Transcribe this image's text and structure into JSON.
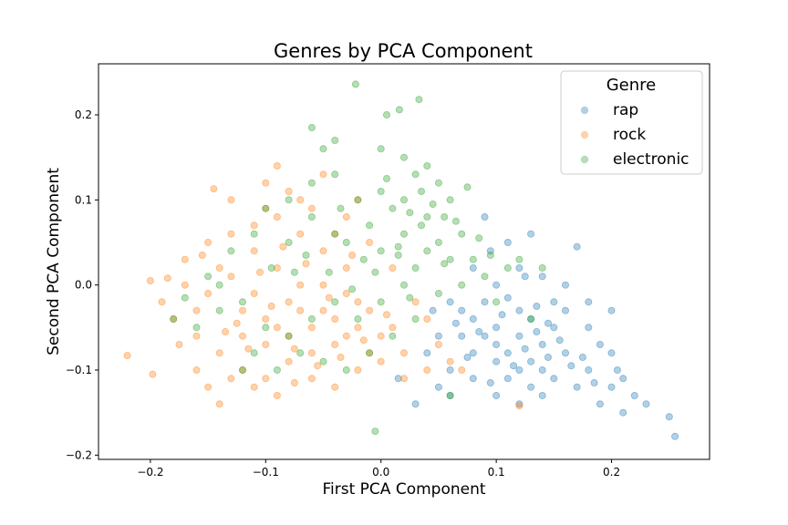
{
  "chart_data": {
    "type": "scatter",
    "title": "Genres by PCA Component",
    "xlabel": "First PCA Component",
    "ylabel": "Second PCA Component",
    "xlim": [
      -0.245,
      0.285
    ],
    "ylim": [
      -0.205,
      0.26
    ],
    "x_ticks": [
      -0.2,
      -0.1,
      0.0,
      0.1,
      0.2
    ],
    "x_tick_labels": [
      "−0.2",
      "−0.1",
      "0.0",
      "0.1",
      "0.2"
    ],
    "y_ticks": [
      -0.2,
      -0.1,
      0.0,
      0.1,
      0.2
    ],
    "y_tick_labels": [
      "−0.2",
      "−0.1",
      "0.0",
      "0.1",
      "0.2"
    ],
    "grid": false,
    "legend": {
      "title": "Genre",
      "placement": "top-right"
    },
    "series": [
      {
        "name": "rap",
        "color": "#1f77b4",
        "points": [
          [
            0.06,
            -0.02
          ],
          [
            0.08,
            -0.04
          ],
          [
            0.1,
            -0.05
          ],
          [
            0.12,
            -0.06
          ],
          [
            0.14,
            -0.07
          ],
          [
            0.11,
            -0.08
          ],
          [
            0.09,
            -0.06
          ],
          [
            0.13,
            -0.04
          ],
          [
            0.15,
            -0.05
          ],
          [
            0.1,
            -0.09
          ],
          [
            0.12,
            -0.1
          ],
          [
            0.07,
            -0.03
          ],
          [
            0.16,
            -0.08
          ],
          [
            0.18,
            -0.1
          ],
          [
            0.2,
            -0.12
          ],
          [
            0.22,
            -0.13
          ],
          [
            0.21,
            -0.15
          ],
          [
            0.25,
            -0.155
          ],
          [
            0.255,
            -0.178
          ],
          [
            0.19,
            -0.14
          ],
          [
            0.17,
            -0.12
          ],
          [
            0.14,
            -0.1
          ],
          [
            0.13,
            -0.12
          ],
          [
            0.11,
            -0.11
          ],
          [
            0.08,
            -0.08
          ],
          [
            0.05,
            -0.06
          ],
          [
            0.04,
            -0.08
          ],
          [
            0.06,
            -0.1
          ],
          [
            0.05,
            -0.12
          ],
          [
            0.03,
            -0.14
          ],
          [
            0.015,
            -0.11
          ],
          [
            0.1,
            0.0
          ],
          [
            0.12,
            0.02
          ],
          [
            0.14,
            0.01
          ],
          [
            0.16,
            0.0
          ],
          [
            0.13,
            0.06
          ],
          [
            0.17,
            0.045
          ],
          [
            0.09,
            0.08
          ],
          [
            0.11,
            0.05
          ],
          [
            0.15,
            -0.02
          ],
          [
            0.18,
            -0.05
          ],
          [
            0.19,
            -0.07
          ],
          [
            0.2,
            -0.08
          ],
          [
            0.21,
            -0.11
          ],
          [
            0.23,
            -0.14
          ],
          [
            0.08,
            -0.11
          ],
          [
            0.06,
            -0.13
          ],
          [
            0.1,
            -0.13
          ],
          [
            0.12,
            -0.14
          ],
          [
            0.14,
            -0.13
          ],
          [
            0.09,
            -0.02
          ],
          [
            0.07,
            -0.06
          ],
          [
            0.13,
            -0.09
          ],
          [
            0.15,
            -0.11
          ],
          [
            0.1,
            -0.07
          ],
          [
            0.12,
            -0.03
          ],
          [
            0.16,
            -0.03
          ],
          [
            0.18,
            -0.02
          ],
          [
            0.2,
            -0.03
          ],
          [
            0.08,
            0.02
          ],
          [
            0.095,
            0.04
          ],
          [
            0.11,
            -0.015
          ],
          [
            0.135,
            -0.055
          ],
          [
            0.155,
            -0.065
          ],
          [
            0.175,
            -0.085
          ],
          [
            0.105,
            -0.035
          ],
          [
            0.125,
            -0.075
          ],
          [
            0.085,
            -0.055
          ],
          [
            0.065,
            -0.045
          ],
          [
            0.045,
            -0.03
          ],
          [
            0.115,
            -0.095
          ],
          [
            0.145,
            -0.085
          ],
          [
            0.165,
            -0.095
          ],
          [
            0.185,
            -0.115
          ],
          [
            0.205,
            -0.1
          ],
          [
            0.075,
            -0.085
          ],
          [
            0.095,
            -0.115
          ],
          [
            0.135,
            -0.025
          ],
          [
            0.125,
            0.01
          ],
          [
            0.145,
            -0.045
          ]
        ]
      },
      {
        "name": "rock",
        "color": "#ff7f0e",
        "points": [
          [
            -0.05,
            -0.03
          ],
          [
            -0.03,
            -0.01
          ],
          [
            -0.06,
            -0.05
          ],
          [
            -0.08,
            -0.02
          ],
          [
            -0.1,
            -0.04
          ],
          [
            -0.12,
            -0.03
          ],
          [
            -0.04,
            -0.07
          ],
          [
            -0.02,
            -0.05
          ],
          [
            0.0,
            -0.06
          ],
          [
            0.02,
            -0.08
          ],
          [
            -0.07,
            0.0
          ],
          [
            -0.09,
            0.02
          ],
          [
            -0.11,
            0.04
          ],
          [
            -0.13,
            0.06
          ],
          [
            -0.15,
            0.05
          ],
          [
            -0.17,
            0.0
          ],
          [
            -0.19,
            -0.02
          ],
          [
            -0.2,
            0.005
          ],
          [
            -0.22,
            -0.083
          ],
          [
            -0.198,
            -0.105
          ],
          [
            -0.185,
            0.008
          ],
          [
            -0.16,
            -0.06
          ],
          [
            -0.14,
            -0.08
          ],
          [
            -0.12,
            -0.1
          ],
          [
            -0.1,
            -0.11
          ],
          [
            -0.08,
            -0.09
          ],
          [
            -0.06,
            -0.11
          ],
          [
            -0.04,
            -0.12
          ],
          [
            -0.02,
            -0.1
          ],
          [
            0.0,
            -0.09
          ],
          [
            -0.14,
            -0.14
          ],
          [
            -0.145,
            0.113
          ],
          [
            -0.13,
            0.1
          ],
          [
            -0.1,
            0.12
          ],
          [
            -0.09,
            0.14
          ],
          [
            -0.07,
            0.1
          ],
          [
            -0.05,
            0.13
          ],
          [
            -0.03,
            0.08
          ],
          [
            -0.01,
            0.05
          ],
          [
            0.01,
            0.02
          ],
          [
            0.03,
            -0.02
          ],
          [
            0.04,
            -0.04
          ],
          [
            0.05,
            -0.07
          ],
          [
            0.06,
            -0.09
          ],
          [
            0.07,
            -0.1
          ],
          [
            -0.15,
            -0.01
          ],
          [
            -0.16,
            -0.03
          ],
          [
            -0.18,
            -0.04
          ],
          [
            -0.17,
            0.03
          ],
          [
            -0.14,
            0.02
          ],
          [
            -0.12,
            -0.06
          ],
          [
            -0.1,
            -0.07
          ],
          [
            -0.08,
            -0.06
          ],
          [
            -0.06,
            -0.08
          ],
          [
            -0.04,
            -0.04
          ],
          [
            -0.02,
            -0.02
          ],
          [
            -0.05,
            0.0
          ],
          [
            -0.03,
            0.02
          ],
          [
            -0.01,
            -0.03
          ],
          [
            -0.07,
            -0.03
          ],
          [
            -0.09,
            -0.05
          ],
          [
            -0.11,
            -0.01
          ],
          [
            -0.13,
            0.01
          ],
          [
            -0.11,
            0.07
          ],
          [
            -0.09,
            0.08
          ],
          [
            -0.07,
            0.06
          ],
          [
            -0.05,
            0.04
          ],
          [
            -0.03,
            -0.06
          ],
          [
            -0.01,
            -0.08
          ],
          [
            0.01,
            -0.05
          ],
          [
            -0.16,
            -0.1
          ],
          [
            -0.15,
            -0.12
          ],
          [
            -0.13,
            -0.11
          ],
          [
            -0.11,
            -0.12
          ],
          [
            -0.09,
            -0.13
          ],
          [
            -0.075,
            -0.115
          ],
          [
            -0.055,
            -0.095
          ],
          [
            -0.035,
            -0.085
          ],
          [
            -0.015,
            -0.065
          ],
          [
            0.005,
            -0.035
          ],
          [
            -0.065,
            0.025
          ],
          [
            -0.085,
            0.045
          ],
          [
            -0.105,
            0.015
          ],
          [
            -0.125,
            -0.045
          ],
          [
            -0.045,
            -0.015
          ],
          [
            -0.025,
            0.035
          ],
          [
            -0.075,
            -0.075
          ],
          [
            -0.095,
            -0.025
          ],
          [
            -0.115,
            -0.075
          ],
          [
            -0.135,
            -0.055
          ],
          [
            -0.155,
            0.035
          ],
          [
            -0.175,
            -0.07
          ],
          [
            -0.06,
            0.09
          ],
          [
            -0.08,
            0.11
          ],
          [
            0.02,
            -0.11
          ],
          [
            0.04,
            -0.1
          ],
          [
            -0.04,
            0.06
          ],
          [
            -0.02,
            0.1
          ],
          [
            0.12,
            -0.142
          ],
          [
            -0.1,
            0.09
          ]
        ]
      },
      {
        "name": "electronic",
        "color": "#2ca02c",
        "points": [
          [
            0.02,
            0.06
          ],
          [
            0.04,
            0.08
          ],
          [
            0.0,
            0.04
          ],
          [
            0.03,
            0.02
          ],
          [
            0.05,
            0.05
          ],
          [
            0.01,
            0.09
          ],
          [
            -0.01,
            0.07
          ],
          [
            0.06,
            0.1
          ],
          [
            0.07,
            0.06
          ],
          [
            0.05,
            0.12
          ],
          [
            0.03,
            0.13
          ],
          [
            0.0,
            0.11
          ],
          [
            -0.02,
            0.1
          ],
          [
            -0.04,
            0.06
          ],
          [
            -0.06,
            0.08
          ],
          [
            -0.08,
            0.05
          ],
          [
            0.08,
            0.03
          ],
          [
            0.09,
            0.01
          ],
          [
            0.1,
            -0.02
          ],
          [
            0.11,
            0.02
          ],
          [
            -0.022,
            0.236
          ],
          [
            0.033,
            0.218
          ],
          [
            0.016,
            0.206
          ],
          [
            0.005,
            0.2
          ],
          [
            -0.06,
            0.185
          ],
          [
            -0.05,
            0.16
          ],
          [
            -0.04,
            0.17
          ],
          [
            0.0,
            0.16
          ],
          [
            0.02,
            0.15
          ],
          [
            0.04,
            0.14
          ],
          [
            0.02,
            0.0
          ],
          [
            0.0,
            -0.02
          ],
          [
            -0.02,
            -0.04
          ],
          [
            -0.04,
            -0.02
          ],
          [
            -0.06,
            -0.04
          ],
          [
            -0.08,
            -0.06
          ],
          [
            -0.1,
            -0.05
          ],
          [
            -0.12,
            -0.02
          ],
          [
            -0.14,
            -0.03
          ],
          [
            -0.16,
            -0.05
          ],
          [
            -0.17,
            -0.015
          ],
          [
            -0.15,
            0.01
          ],
          [
            -0.13,
            0.04
          ],
          [
            -0.11,
            0.06
          ],
          [
            -0.1,
            0.09
          ],
          [
            -0.08,
            0.1
          ],
          [
            -0.06,
            0.12
          ],
          [
            -0.04,
            0.13
          ],
          [
            0.06,
            0.03
          ],
          [
            0.07,
            0.0
          ],
          [
            0.05,
            -0.01
          ],
          [
            0.03,
            -0.04
          ],
          [
            0.01,
            -0.06
          ],
          [
            -0.01,
            -0.08
          ],
          [
            -0.03,
            -0.1
          ],
          [
            -0.05,
            -0.09
          ],
          [
            -0.07,
            -0.08
          ],
          [
            -0.09,
            -0.1
          ],
          [
            -0.11,
            -0.08
          ],
          [
            -0.12,
            -0.1
          ],
          [
            -0.005,
            -0.172
          ],
          [
            0.06,
            -0.13
          ],
          [
            0.04,
            0.04
          ],
          [
            0.02,
            0.1
          ],
          [
            0.035,
            0.07
          ],
          [
            0.015,
            0.045
          ],
          [
            -0.015,
            0.03
          ],
          [
            -0.03,
            0.05
          ],
          [
            0.045,
            0.095
          ],
          [
            0.065,
            0.075
          ],
          [
            0.075,
            0.115
          ],
          [
            0.085,
            0.055
          ],
          [
            0.055,
            0.025
          ],
          [
            0.025,
            -0.015
          ],
          [
            -0.005,
            0.015
          ],
          [
            -0.025,
            -0.005
          ],
          [
            -0.045,
            0.015
          ],
          [
            -0.065,
            0.035
          ],
          [
            0.005,
            0.125
          ],
          [
            0.025,
            0.085
          ],
          [
            0.015,
            0.035
          ],
          [
            -0.035,
            0.09
          ],
          [
            0.095,
            0.035
          ],
          [
            0.13,
            -0.04
          ],
          [
            0.14,
            0.02
          ],
          [
            0.12,
            0.03
          ],
          [
            -0.18,
            -0.04
          ],
          [
            -0.14,
            0.0
          ],
          [
            -0.095,
            0.02
          ],
          [
            -0.075,
            0.015
          ],
          [
            0.035,
            0.11
          ],
          [
            0.055,
            0.08
          ]
        ]
      }
    ]
  }
}
